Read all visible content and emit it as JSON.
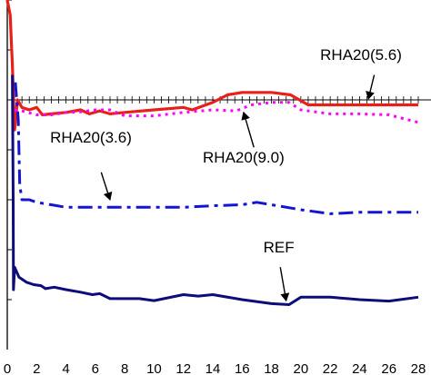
{
  "chart_data": {
    "type": "line",
    "title": "",
    "xlabel": "",
    "ylabel": "",
    "x_tick_labels": [
      "0",
      "2",
      "4",
      "6",
      "8",
      "10",
      "12",
      "14",
      "16",
      "18",
      "20",
      "22",
      "24",
      "26",
      "28"
    ],
    "xlim": [
      0,
      28
    ],
    "ylim": [
      0,
      7
    ],
    "y_ticks": [
      1,
      2,
      3,
      4,
      5,
      6,
      7
    ],
    "center_axis_y": 5,
    "grid": false,
    "legend": "none",
    "series": [
      {
        "key": "rha56",
        "color": "#e8201a",
        "dash": "solid",
        "width": 3.2,
        "points": [
          [
            0,
            7.0
          ],
          [
            0.2,
            6.7
          ],
          [
            0.35,
            5.7
          ],
          [
            0.5,
            4.4
          ],
          [
            0.7,
            5.0
          ],
          [
            1.0,
            4.85
          ],
          [
            1.5,
            4.8
          ],
          [
            2.0,
            4.85
          ],
          [
            2.4,
            4.7
          ],
          [
            3,
            4.72
          ],
          [
            4,
            4.75
          ],
          [
            5,
            4.8
          ],
          [
            5.6,
            4.72
          ],
          [
            6.3,
            4.78
          ],
          [
            7,
            4.72
          ],
          [
            8,
            4.75
          ],
          [
            10,
            4.8
          ],
          [
            12,
            4.85
          ],
          [
            12.6,
            4.8
          ],
          [
            14,
            4.95
          ],
          [
            15,
            5.1
          ],
          [
            16,
            5.15
          ],
          [
            18,
            5.15
          ],
          [
            19.3,
            5.1
          ],
          [
            20.5,
            4.9
          ],
          [
            22,
            4.9
          ],
          [
            28,
            4.9
          ]
        ]
      },
      {
        "key": "rha90",
        "color": "#ff00ff",
        "dash": "3,5",
        "width": 3,
        "points": [
          [
            0.5,
            4.8
          ],
          [
            1,
            4.78
          ],
          [
            2,
            4.7
          ],
          [
            3,
            4.7
          ],
          [
            4,
            4.75
          ],
          [
            5,
            4.76
          ],
          [
            6,
            4.8
          ],
          [
            7,
            4.8
          ],
          [
            8,
            4.68
          ],
          [
            10,
            4.68
          ],
          [
            12,
            4.75
          ],
          [
            14,
            4.8
          ],
          [
            15.6,
            4.78
          ],
          [
            16.6,
            4.9
          ],
          [
            18,
            4.95
          ],
          [
            19.2,
            4.95
          ],
          [
            20,
            4.8
          ],
          [
            22,
            4.72
          ],
          [
            24,
            4.72
          ],
          [
            26,
            4.7
          ],
          [
            28,
            4.55
          ]
        ]
      },
      {
        "key": "rha36",
        "color": "#1414d2",
        "dash": "16,6,4,6",
        "width": 3,
        "points": [
          [
            0.55,
            5.35
          ],
          [
            0.75,
            4.6
          ],
          [
            0.85,
            3.3
          ],
          [
            1.0,
            3.0
          ],
          [
            1.5,
            3.0
          ],
          [
            2.0,
            2.95
          ],
          [
            3,
            2.9
          ],
          [
            4,
            2.85
          ],
          [
            6,
            2.85
          ],
          [
            8,
            2.85
          ],
          [
            10,
            2.85
          ],
          [
            12,
            2.85
          ],
          [
            14,
            2.88
          ],
          [
            16,
            2.9
          ],
          [
            17,
            2.95
          ],
          [
            18,
            2.9
          ],
          [
            20,
            2.8
          ],
          [
            22,
            2.72
          ],
          [
            24,
            2.75
          ],
          [
            28,
            2.75
          ]
        ]
      },
      {
        "key": "ref",
        "color": "#0c0c7a",
        "dash": "solid",
        "width": 3,
        "points": [
          [
            0.35,
            5.5
          ],
          [
            0.4,
            3.0
          ],
          [
            0.42,
            1.2
          ],
          [
            0.5,
            1.65
          ],
          [
            0.8,
            1.45
          ],
          [
            1.3,
            1.35
          ],
          [
            1.8,
            1.3
          ],
          [
            2.3,
            1.28
          ],
          [
            2.6,
            1.22
          ],
          [
            3.2,
            1.25
          ],
          [
            4,
            1.2
          ],
          [
            5,
            1.15
          ],
          [
            5.8,
            1.1
          ],
          [
            6.3,
            1.12
          ],
          [
            7,
            1.02
          ],
          [
            9,
            1.02
          ],
          [
            10,
            0.98
          ],
          [
            12,
            1.1
          ],
          [
            13,
            1.07
          ],
          [
            14,
            1.1
          ],
          [
            16,
            1.0
          ],
          [
            18,
            0.92
          ],
          [
            19.2,
            0.9
          ],
          [
            20,
            1.05
          ],
          [
            22,
            1.05
          ],
          [
            24,
            1.0
          ],
          [
            26,
            0.97
          ],
          [
            28,
            1.05
          ]
        ]
      }
    ],
    "annotations": [
      {
        "key": "rha56",
        "text": "RHA20(5.6)",
        "label_at": [
          24.1,
          5.8
        ],
        "arrow_from": [
          25.0,
          5.5
        ],
        "arrow_to": [
          24.6,
          5.02
        ]
      },
      {
        "key": "rha90",
        "text": "RHA20(9.0)",
        "label_at": [
          16.1,
          3.75
        ],
        "arrow_from": [
          16.8,
          4.05
        ],
        "arrow_to": [
          16.1,
          4.75
        ]
      },
      {
        "key": "rha36",
        "text": "RHA20(3.6)",
        "label_at": [
          5.7,
          4.15
        ],
        "arrow_from": [
          6.4,
          3.55
        ],
        "arrow_to": [
          7.0,
          3.0
        ]
      },
      {
        "key": "ref",
        "text": "REF",
        "label_at": [
          18.5,
          1.95
        ],
        "arrow_from": [
          18.6,
          1.65
        ],
        "arrow_to": [
          19.0,
          0.98
        ]
      }
    ]
  }
}
